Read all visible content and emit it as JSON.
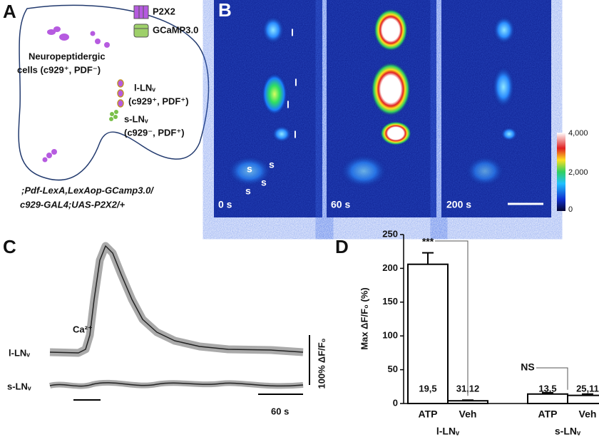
{
  "panels": {
    "a": {
      "letter": "A",
      "legend": [
        "P2X2",
        "GCaMP3.0"
      ],
      "neuropeptidergic": [
        "Neuropeptidergic",
        "cells (c929⁺, PDF⁻)"
      ],
      "l_lnv": [
        "l-LNᵥ",
        "(c929⁺, PDF⁺)"
      ],
      "s_lnv": [
        "s-LNᵥ",
        "(c929⁻, PDF⁺)"
      ],
      "genotype": [
        ";Pdf-LexA,LexAop-GCamp3.0/",
        "c929-GAL4;UAS-P2X2/+"
      ]
    },
    "b": {
      "letter": "B",
      "times": [
        "0 s",
        "60 s",
        "200 s"
      ],
      "markers": [
        "l",
        "l",
        "l",
        "l",
        "s",
        "s",
        "s",
        "s"
      ],
      "colorbar": [
        "4,000",
        "2,000",
        "0"
      ]
    },
    "c": {
      "letter": "C",
      "ion": "Ca²⁺",
      "traces": [
        "l-LNᵥ",
        "s-LNᵥ"
      ],
      "scale_y": "100% ΔF/F₀",
      "scale_x": "60 s"
    }
  },
  "chart_data": {
    "type": "bar",
    "letter": "D",
    "ylabel": "Max ΔF/F₀ (%)",
    "categories": [
      "ATP",
      "Veh",
      "ATP",
      "Veh"
    ],
    "groups": [
      "l-LNᵥ",
      "s-LNᵥ"
    ],
    "values": [
      206,
      4,
      14,
      12
    ],
    "errors": [
      17,
      1,
      2,
      2
    ],
    "n_labels": [
      "19,5",
      "31,12",
      "13,5",
      "25,11"
    ],
    "significance": [
      "***",
      "NS"
    ],
    "ylim": [
      0,
      250
    ],
    "yticks": [
      0,
      50,
      100,
      150,
      200,
      250
    ],
    "color": "#ffffff"
  }
}
